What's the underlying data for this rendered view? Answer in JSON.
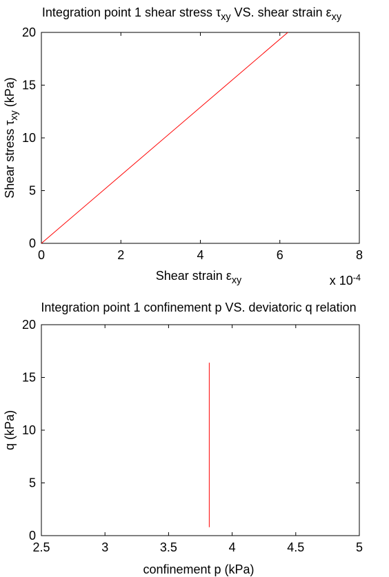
{
  "chart_data": [
    {
      "type": "line",
      "title_parts": [
        {
          "t": "Integration point 1 shear stress τ"
        },
        {
          "t": "xy",
          "sub": true
        },
        {
          "t": " VS. shear strain ε"
        },
        {
          "t": "xy",
          "sub": true
        }
      ],
      "xlabel_parts": [
        {
          "t": "Shear strain ε"
        },
        {
          "t": "xy",
          "sub": true
        }
      ],
      "ylabel_parts": [
        {
          "t": "Shear stress τ"
        },
        {
          "t": "xy",
          "sub": true
        },
        {
          "t": " (kPa)"
        }
      ],
      "x_exponent_base": "x 10",
      "x_exponent_power": "-4",
      "xlim": [
        0,
        8
      ],
      "ylim": [
        0,
        20
      ],
      "xticks": [
        0,
        2,
        4,
        6,
        8
      ],
      "xtick_labels": [
        "0",
        "2",
        "4",
        "6",
        "8"
      ],
      "yticks": [
        0,
        5,
        10,
        15,
        20
      ],
      "ytick_labels": [
        "0",
        "5",
        "10",
        "15",
        "20"
      ],
      "grid": false,
      "series": [
        {
          "color": "#ff0000",
          "x": [
            0,
            6.2
          ],
          "y": [
            0,
            20
          ]
        }
      ]
    },
    {
      "type": "line",
      "title_parts": [
        {
          "t": "Integration point 1 confinement p VS. deviatoric q relation"
        }
      ],
      "xlabel_parts": [
        {
          "t": "confinement p (kPa)"
        }
      ],
      "ylabel_parts": [
        {
          "t": "q (kPa)"
        }
      ],
      "xlim": [
        2.5,
        5
      ],
      "ylim": [
        0,
        20
      ],
      "xticks": [
        2.5,
        3,
        3.5,
        4,
        4.5,
        5
      ],
      "xtick_labels": [
        "2.5",
        "3",
        "3.5",
        "4",
        "4.5",
        "5"
      ],
      "yticks": [
        0,
        5,
        10,
        15,
        20
      ],
      "ytick_labels": [
        "0",
        "5",
        "10",
        "15",
        "20"
      ],
      "grid": false,
      "series": [
        {
          "color": "#ff0000",
          "x": [
            3.82,
            3.82
          ],
          "y": [
            0.8,
            16.4
          ]
        }
      ]
    }
  ]
}
